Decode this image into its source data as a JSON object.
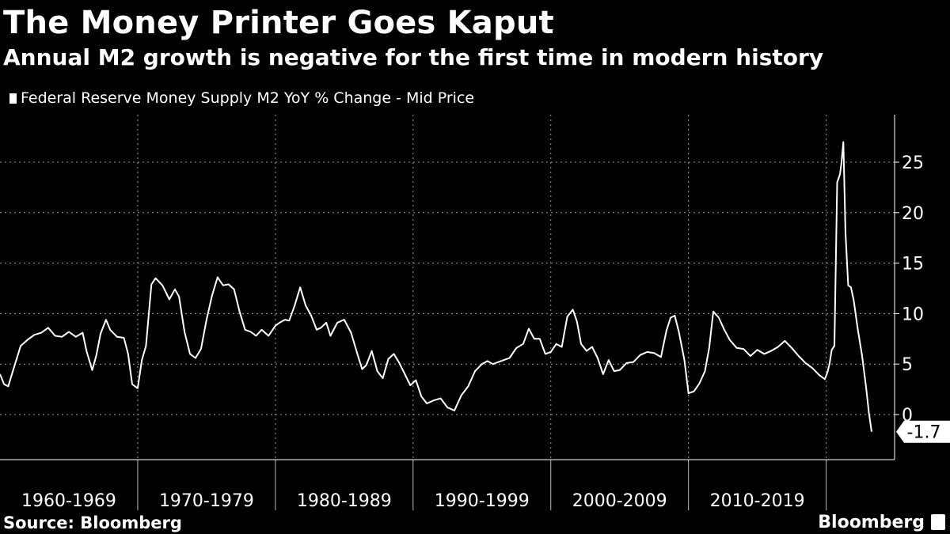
{
  "header": {
    "title": "The Money Printer Goes Kaput",
    "subtitle": "Annual M2 growth is negative for the first time in modern history"
  },
  "footer": {
    "source": "Source: Bloomberg",
    "brand": "Bloomberg"
  },
  "colors": {
    "background": "#000000",
    "line": "#ffffff",
    "grid": "#9a9a9a"
  },
  "chart_data": {
    "type": "line",
    "title": "The Money Printer Goes Kaput",
    "subtitle": "Annual M2 growth is negative for the first time in modern history",
    "legend": [
      "Federal Reserve Money Supply M2 YoY % Change - Mid Price"
    ],
    "legend_placement": "top-left",
    "x_labels": [
      "1960-1969",
      "1970-1979",
      "1980-1989",
      "1990-1999",
      "2000-2009",
      "2010-2019"
    ],
    "y_ticks": [
      0,
      5,
      10,
      15,
      20,
      25
    ],
    "y_tick_labels": [
      "0",
      "5",
      "10",
      "15",
      "20",
      "25"
    ],
    "ylim": [
      -4,
      30
    ],
    "xlim": [
      1960.0,
      2023.3
    ],
    "grid": true,
    "y_axis_side": "right",
    "last_value_label": "-1.7",
    "series": [
      {
        "name": "Federal Reserve Money Supply M2 YoY % Change - Mid Price",
        "x": [
          1960.0,
          1960.3,
          1960.6,
          1961.0,
          1961.5,
          1962.0,
          1962.5,
          1963.0,
          1963.5,
          1964.0,
          1964.5,
          1965.0,
          1965.5,
          1966.0,
          1966.3,
          1966.7,
          1967.0,
          1967.3,
          1967.7,
          1968.0,
          1968.5,
          1969.0,
          1969.3,
          1969.6,
          1970.0,
          1970.3,
          1970.6,
          1971.0,
          1971.3,
          1971.8,
          1972.3,
          1972.7,
          1973.0,
          1973.4,
          1973.8,
          1974.2,
          1974.6,
          1975.0,
          1975.4,
          1975.8,
          1976.2,
          1976.6,
          1977.0,
          1977.4,
          1977.8,
          1978.2,
          1978.6,
          1979.0,
          1979.5,
          1980.0,
          1980.3,
          1980.7,
          1981.0,
          1981.4,
          1981.8,
          1982.2,
          1982.6,
          1983.0,
          1983.3,
          1983.7,
          1984.0,
          1984.5,
          1985.0,
          1985.5,
          1986.0,
          1986.3,
          1986.6,
          1987.0,
          1987.4,
          1987.8,
          1988.2,
          1988.6,
          1989.0,
          1989.4,
          1989.8,
          1990.2,
          1990.6,
          1991.0,
          1991.5,
          1992.0,
          1992.5,
          1993.0,
          1993.5,
          1994.0,
          1994.5,
          1995.0,
          1995.4,
          1995.8,
          1996.2,
          1996.6,
          1997.0,
          1997.5,
          1998.0,
          1998.4,
          1998.8,
          1999.2,
          1999.6,
          2000.0,
          2000.4,
          2000.8,
          2001.2,
          2001.6,
          2001.9,
          2002.2,
          2002.6,
          2003.0,
          2003.4,
          2003.8,
          2004.2,
          2004.6,
          2005.0,
          2005.5,
          2006.0,
          2006.5,
          2007.0,
          2007.5,
          2008.0,
          2008.4,
          2008.7,
          2009.0,
          2009.3,
          2009.7,
          2010.0,
          2010.4,
          2010.8,
          2011.2,
          2011.5,
          2011.8,
          2012.2,
          2012.6,
          2013.0,
          2013.5,
          2014.0,
          2014.5,
          2015.0,
          2015.5,
          2016.0,
          2016.5,
          2017.0,
          2017.5,
          2018.0,
          2018.5,
          2019.0,
          2019.5,
          2019.9,
          2020.1,
          2020.25,
          2020.4,
          2020.6,
          2020.8,
          2021.0,
          2021.1,
          2021.25,
          2021.4,
          2021.6,
          2021.8,
          2022.0,
          2022.3,
          2022.6,
          2022.9,
          2023.1,
          2023.3
        ],
        "values": [
          4.0,
          3.0,
          2.8,
          4.6,
          6.8,
          7.4,
          7.9,
          8.1,
          8.6,
          7.8,
          7.7,
          8.2,
          7.7,
          8.1,
          6.2,
          4.4,
          5.9,
          8.0,
          9.4,
          8.4,
          7.7,
          7.6,
          6.0,
          3.0,
          2.6,
          5.4,
          6.8,
          12.9,
          13.5,
          12.8,
          11.4,
          12.4,
          11.7,
          8.2,
          6.0,
          5.6,
          6.5,
          9.4,
          11.8,
          13.6,
          12.8,
          12.9,
          12.4,
          10.2,
          8.4,
          8.2,
          7.8,
          8.4,
          7.8,
          8.8,
          9.1,
          9.4,
          9.3,
          10.8,
          12.6,
          10.8,
          9.8,
          8.4,
          8.6,
          9.1,
          7.8,
          9.1,
          9.4,
          8.1,
          5.8,
          4.5,
          4.9,
          6.3,
          4.3,
          3.6,
          5.5,
          6.0,
          5.1,
          4.0,
          2.9,
          3.4,
          1.8,
          1.1,
          1.4,
          1.6,
          0.7,
          0.4,
          1.9,
          2.8,
          4.3,
          5.0,
          5.3,
          5.0,
          5.2,
          5.4,
          5.6,
          6.6,
          7.0,
          8.5,
          7.5,
          7.5,
          6.0,
          6.2,
          7.0,
          6.7,
          9.7,
          10.4,
          9.2,
          7.0,
          6.3,
          6.7,
          5.6,
          4.0,
          5.4,
          4.3,
          4.4,
          5.1,
          5.2,
          5.9,
          6.2,
          6.1,
          5.7,
          8.3,
          9.6,
          9.8,
          8.2,
          5.4,
          2.1,
          2.3,
          3.1,
          4.3,
          6.6,
          10.2,
          9.6,
          8.4,
          7.4,
          6.6,
          6.5,
          5.8,
          6.4,
          6.0,
          6.3,
          6.7,
          7.3,
          6.6,
          5.8,
          5.1,
          4.6,
          3.9,
          3.5,
          4.2,
          5.1,
          6.4,
          6.8,
          23.0,
          23.8,
          24.8,
          27.0,
          18.0,
          12.8,
          12.6,
          11.3,
          8.4,
          5.9,
          2.7,
          0.2,
          -1.7
        ]
      }
    ]
  }
}
